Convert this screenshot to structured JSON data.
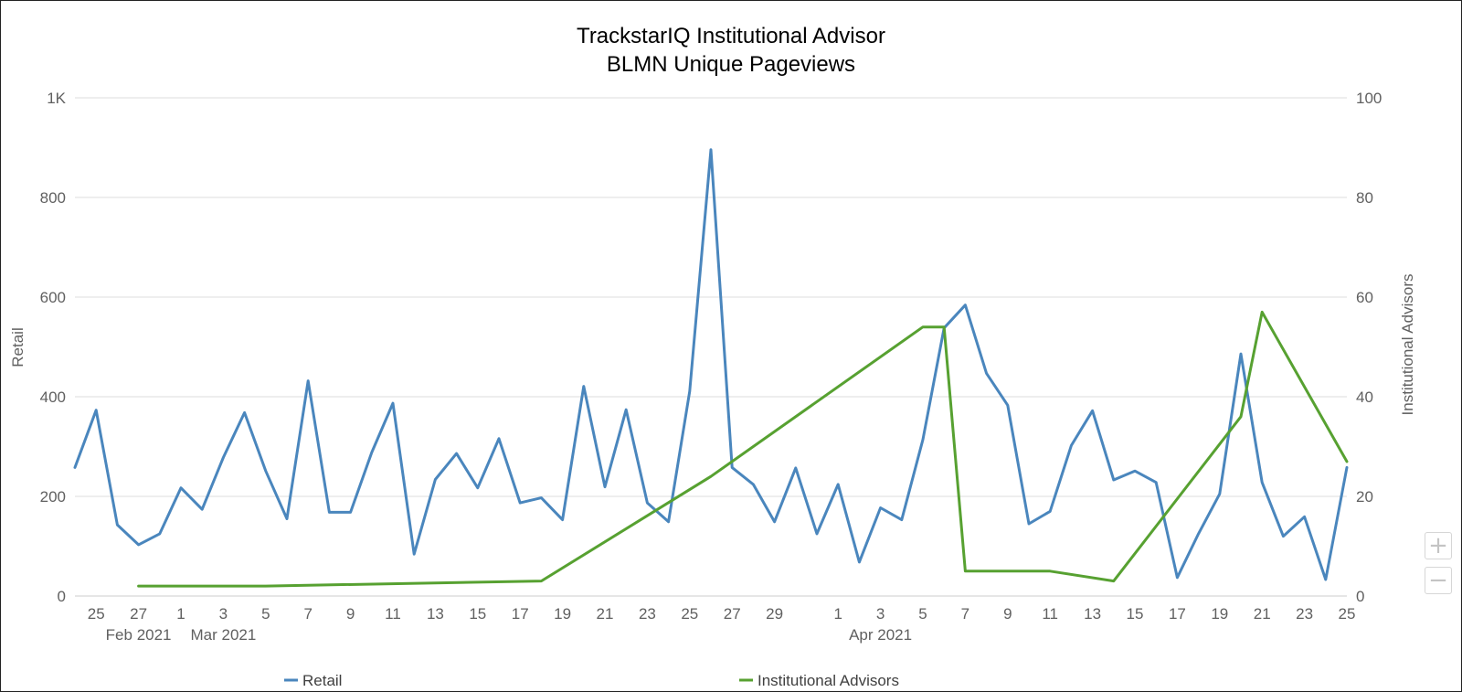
{
  "chart_data": {
    "type": "line",
    "title": "TrackstarIQ Institutional Advisor",
    "subtitle": "BLMN Unique Pageviews",
    "y_left_label": "Retail",
    "y_right_label": "Institutional Advisors",
    "y_left_ticks": [
      "0",
      "200",
      "400",
      "600",
      "800",
      "1K"
    ],
    "y_left_range": [
      0,
      1000
    ],
    "y_right_ticks": [
      "0",
      "20",
      "40",
      "60",
      "80",
      "100"
    ],
    "y_right_range": [
      0,
      100
    ],
    "x_range": [
      "2021-02-24",
      "2021-04-25"
    ],
    "x_ticks": [
      {
        "date": "2021-02-25",
        "label": "25"
      },
      {
        "date": "2021-02-27",
        "label": "27"
      },
      {
        "date": "2021-03-01",
        "label": "1"
      },
      {
        "date": "2021-03-03",
        "label": "3"
      },
      {
        "date": "2021-03-05",
        "label": "5"
      },
      {
        "date": "2021-03-07",
        "label": "7"
      },
      {
        "date": "2021-03-09",
        "label": "9"
      },
      {
        "date": "2021-03-11",
        "label": "11"
      },
      {
        "date": "2021-03-13",
        "label": "13"
      },
      {
        "date": "2021-03-15",
        "label": "15"
      },
      {
        "date": "2021-03-17",
        "label": "17"
      },
      {
        "date": "2021-03-19",
        "label": "19"
      },
      {
        "date": "2021-03-21",
        "label": "21"
      },
      {
        "date": "2021-03-23",
        "label": "23"
      },
      {
        "date": "2021-03-25",
        "label": "25"
      },
      {
        "date": "2021-03-27",
        "label": "27"
      },
      {
        "date": "2021-03-29",
        "label": "29"
      },
      {
        "date": "2021-04-01",
        "label": "1"
      },
      {
        "date": "2021-04-03",
        "label": "3"
      },
      {
        "date": "2021-04-05",
        "label": "5"
      },
      {
        "date": "2021-04-07",
        "label": "7"
      },
      {
        "date": "2021-04-09",
        "label": "9"
      },
      {
        "date": "2021-04-11",
        "label": "11"
      },
      {
        "date": "2021-04-13",
        "label": "13"
      },
      {
        "date": "2021-04-15",
        "label": "15"
      },
      {
        "date": "2021-04-17",
        "label": "17"
      },
      {
        "date": "2021-04-19",
        "label": "19"
      },
      {
        "date": "2021-04-21",
        "label": "21"
      },
      {
        "date": "2021-04-23",
        "label": "23"
      },
      {
        "date": "2021-04-25",
        "label": "25"
      }
    ],
    "x_period_labels": [
      {
        "date": "2021-02-27",
        "label": "Feb 2021"
      },
      {
        "date": "2021-03-03",
        "label": "Mar 2021"
      },
      {
        "date": "2021-04-03",
        "label": "Apr 2021"
      }
    ],
    "series": [
      {
        "name": "Retail",
        "axis": "left",
        "color": "#4a86bd",
        "points": [
          [
            "2021-02-24",
            258
          ],
          [
            "2021-02-25",
            373
          ],
          [
            "2021-02-26",
            143
          ],
          [
            "2021-02-27",
            103
          ],
          [
            "2021-02-28",
            125
          ],
          [
            "2021-03-01",
            217
          ],
          [
            "2021-03-02",
            174
          ],
          [
            "2021-03-03",
            278
          ],
          [
            "2021-03-04",
            368
          ],
          [
            "2021-03-05",
            251
          ],
          [
            "2021-03-06",
            155
          ],
          [
            "2021-03-07",
            432
          ],
          [
            "2021-03-08",
            168
          ],
          [
            "2021-03-09",
            168
          ],
          [
            "2021-03-10",
            288
          ],
          [
            "2021-03-11",
            387
          ],
          [
            "2021-03-12",
            84
          ],
          [
            "2021-03-13",
            234
          ],
          [
            "2021-03-14",
            286
          ],
          [
            "2021-03-15",
            217
          ],
          [
            "2021-03-16",
            316
          ],
          [
            "2021-03-17",
            187
          ],
          [
            "2021-03-18",
            197
          ],
          [
            "2021-03-19",
            153
          ],
          [
            "2021-03-20",
            421
          ],
          [
            "2021-03-21",
            219
          ],
          [
            "2021-03-22",
            374
          ],
          [
            "2021-03-23",
            187
          ],
          [
            "2021-03-24",
            149
          ],
          [
            "2021-03-25",
            411
          ],
          [
            "2021-03-26",
            896
          ],
          [
            "2021-03-27",
            258
          ],
          [
            "2021-03-28",
            224
          ],
          [
            "2021-03-29",
            149
          ],
          [
            "2021-03-30",
            257
          ],
          [
            "2021-03-31",
            125
          ],
          [
            "2021-04-01",
            224
          ],
          [
            "2021-04-02",
            68
          ],
          [
            "2021-04-03",
            177
          ],
          [
            "2021-04-04",
            153
          ],
          [
            "2021-04-05",
            314
          ],
          [
            "2021-04-06",
            538
          ],
          [
            "2021-04-07",
            584
          ],
          [
            "2021-04-08",
            447
          ],
          [
            "2021-04-09",
            383
          ],
          [
            "2021-04-10",
            145
          ],
          [
            "2021-04-11",
            170
          ],
          [
            "2021-04-12",
            302
          ],
          [
            "2021-04-13",
            372
          ],
          [
            "2021-04-14",
            233
          ],
          [
            "2021-04-15",
            251
          ],
          [
            "2021-04-16",
            228
          ],
          [
            "2021-04-17",
            37
          ],
          [
            "2021-04-18",
            125
          ],
          [
            "2021-04-19",
            205
          ],
          [
            "2021-04-20",
            486
          ],
          [
            "2021-04-21",
            228
          ],
          [
            "2021-04-22",
            120
          ],
          [
            "2021-04-23",
            159
          ],
          [
            "2021-04-24",
            33
          ],
          [
            "2021-04-25",
            258
          ]
        ]
      },
      {
        "name": "Institutional Advisors",
        "axis": "right",
        "color": "#57a131",
        "points": [
          [
            "2021-02-27",
            2
          ],
          [
            "2021-03-05",
            2
          ],
          [
            "2021-03-18",
            3
          ],
          [
            "2021-03-26",
            24
          ],
          [
            "2021-04-05",
            54
          ],
          [
            "2021-04-06",
            54
          ],
          [
            "2021-04-07",
            5
          ],
          [
            "2021-04-11",
            5
          ],
          [
            "2021-04-14",
            3
          ],
          [
            "2021-04-20",
            36
          ],
          [
            "2021-04-21",
            57
          ],
          [
            "2021-04-25",
            27
          ]
        ]
      }
    ],
    "legend_position": "bottom",
    "grid": true
  },
  "zoom": {
    "in_label": "+",
    "out_label": "−"
  }
}
